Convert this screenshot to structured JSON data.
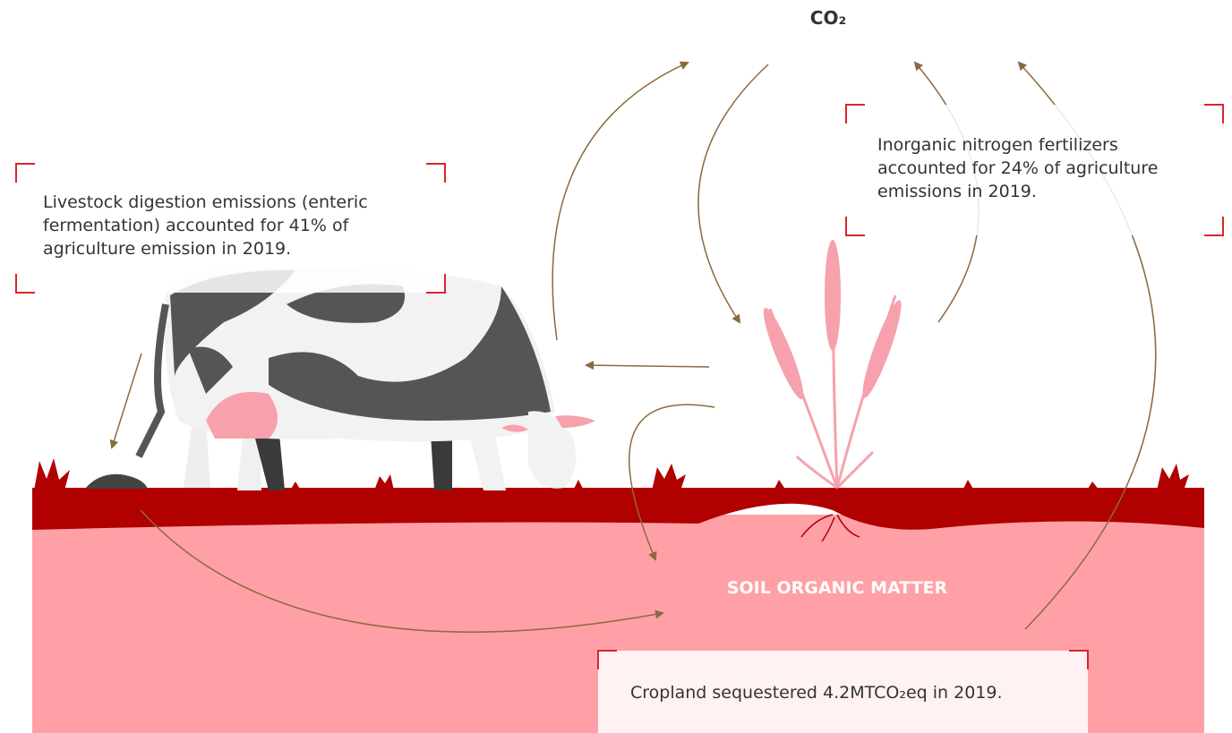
{
  "labels": {
    "co2": "CO₂",
    "soil": "SOIL ORGANIC MATTER"
  },
  "callouts": [
    {
      "text": "Livestock digestion emissions (enteric fermentation) accounted for 41% of agriculture emission in 2019."
    },
    {
      "text": "Inorganic nitrogen fertilizers accounted for 24% of agriculture emissions in 2019."
    },
    {
      "text": "Cropland sequestered 4.2MTCO₂eq in 2019."
    }
  ]
}
